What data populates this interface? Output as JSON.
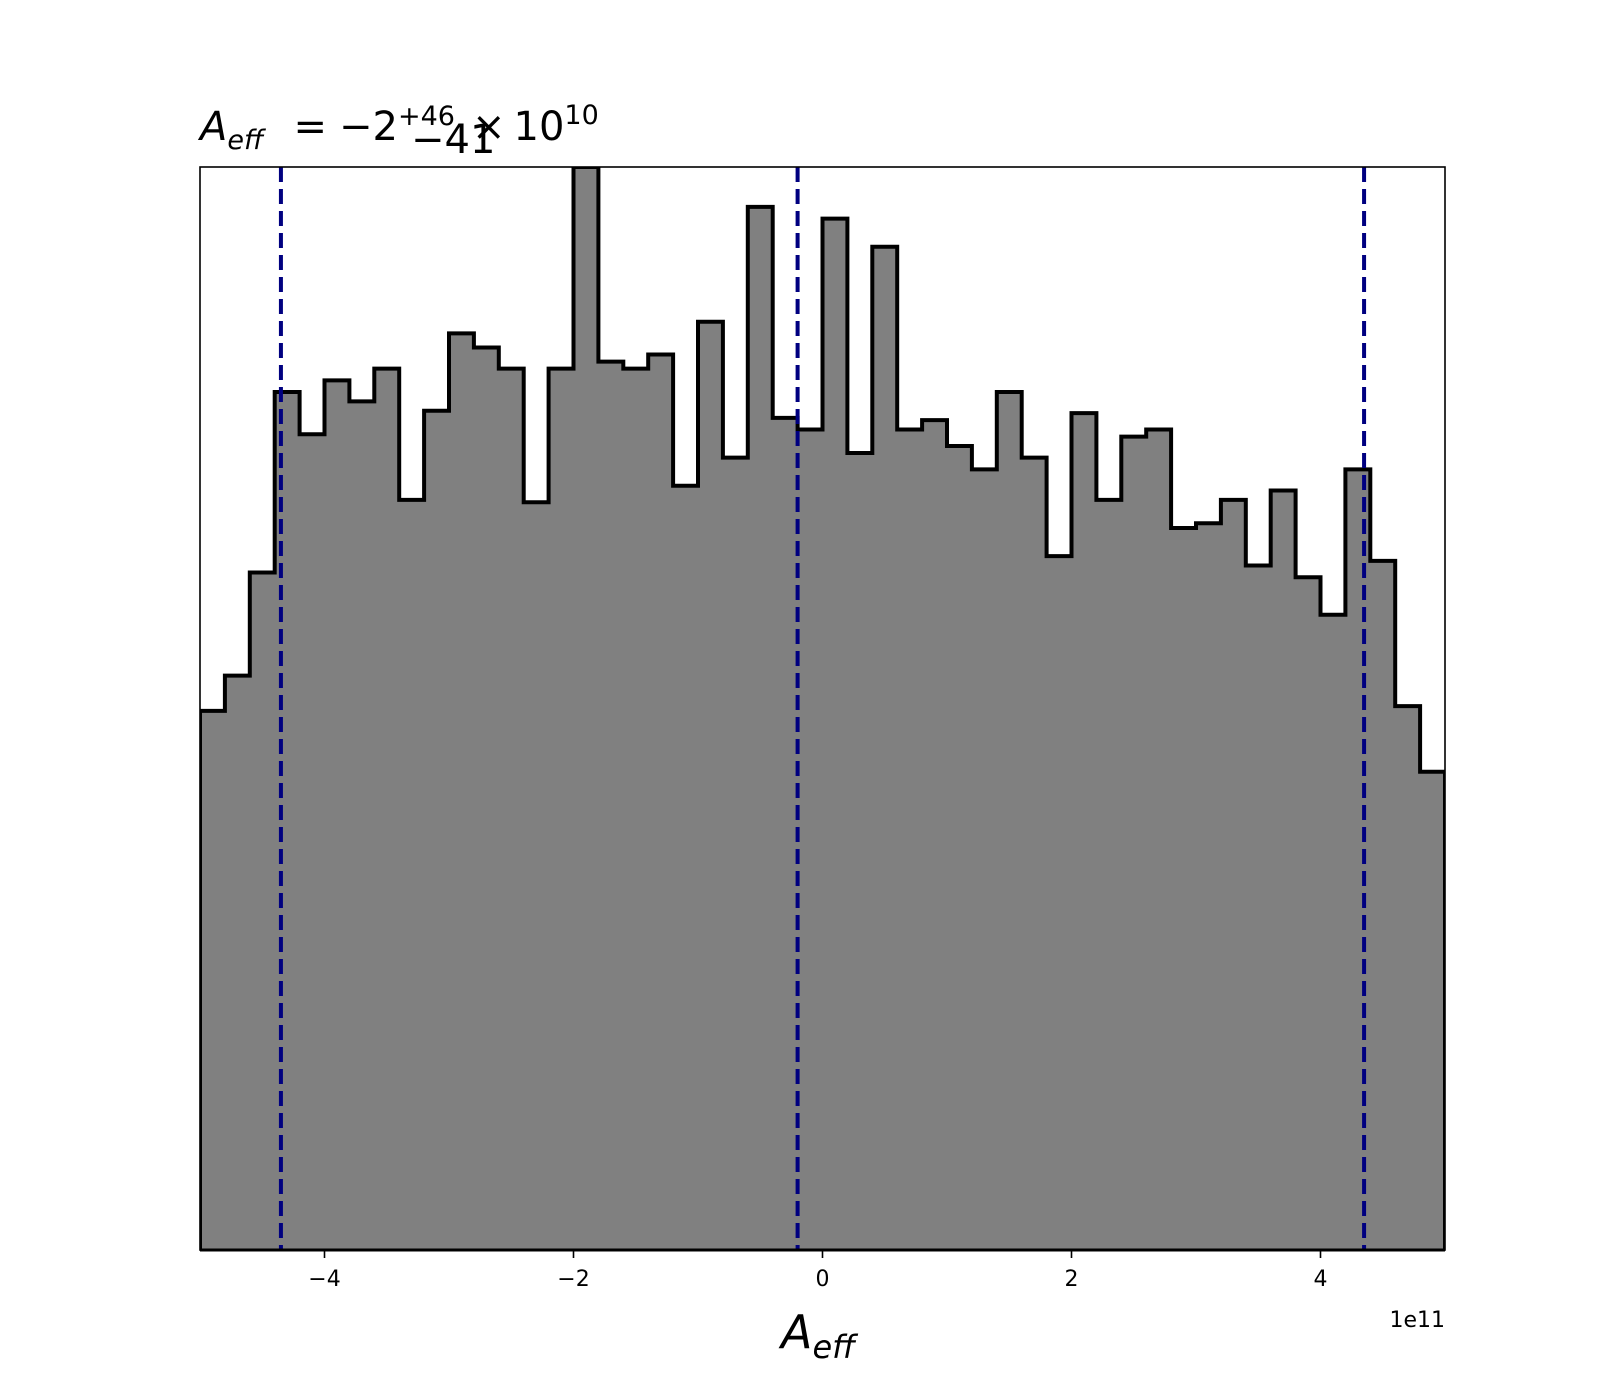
{
  "chart_data": {
    "type": "histogram",
    "title": {
      "symbol": "A",
      "symbol_sub": "eff",
      "equals": "=",
      "median": "−2",
      "upper": "+46",
      "lower": "−41",
      "times": "×",
      "base": "10",
      "exponent": "10"
    },
    "xlabel": {
      "symbol": "A",
      "sub": "eff"
    },
    "x_offset_label": "1e11",
    "x_scale": 100000000000.0,
    "xlim": [
      -5.0,
      5.0
    ],
    "ylim": [
      0,
      2310
    ],
    "x_ticks": [
      -4,
      -2,
      0,
      2,
      4
    ],
    "x_tick_labels": [
      "−4",
      "−2",
      "0",
      "2",
      "4"
    ],
    "bin_edges": [
      -5.0,
      -4.8,
      -4.6,
      -4.4,
      -4.2,
      -4.0,
      -3.8,
      -3.6,
      -3.4,
      -3.2,
      -3.0,
      -2.8,
      -2.6,
      -2.4,
      -2.2,
      -2.0,
      -1.8,
      -1.6,
      -1.4,
      -1.2,
      -1.0,
      -0.8,
      -0.6,
      -0.4,
      -0.2,
      0.0,
      0.2,
      0.4,
      0.6,
      0.8,
      1.0,
      1.2,
      1.4,
      1.6,
      1.8,
      2.0,
      2.2,
      2.4,
      2.6,
      2.8,
      3.0,
      3.2,
      3.4,
      3.6,
      3.8,
      4.0,
      4.2,
      4.4,
      4.6,
      4.8,
      5.0
    ],
    "counts": [
      1150,
      1225,
      1445,
      1830,
      1740,
      1855,
      1810,
      1880,
      1600,
      1790,
      1955,
      1925,
      1880,
      1595,
      1880,
      2310,
      1895,
      1880,
      1910,
      1630,
      1980,
      1690,
      2225,
      1775,
      1750,
      2200,
      1700,
      2140,
      1750,
      1770,
      1715,
      1665,
      1830,
      1690,
      1480,
      1785,
      1600,
      1735,
      1750,
      1540,
      1550,
      1600,
      1460,
      1620,
      1435,
      1355,
      1665,
      1470,
      1160,
      1020
    ],
    "fill_color": "#808080",
    "edge_color": "#000000",
    "quantile_lines": [
      -4.35,
      -0.2,
      4.35
    ],
    "quantile_color": "#000080"
  }
}
